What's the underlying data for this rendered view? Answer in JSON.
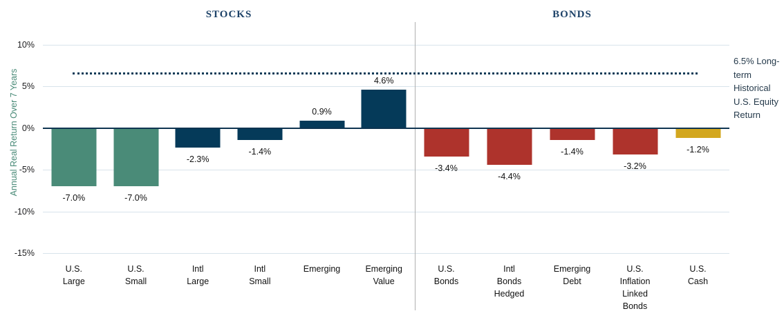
{
  "section_titles": {
    "stocks": "STOCKS",
    "bonds": "BONDS"
  },
  "y_axis_title": "Annual Real Return Over 7 Years",
  "annotation": {
    "text": "6.5% Long-term Historical U.S. Equity Return",
    "lines": [
      "6.5% Long-",
      "term",
      "Historical",
      "U.S. Equity",
      "Return"
    ]
  },
  "colors": {
    "teal": "#4a8b78",
    "navy": "#053a59",
    "red": "#ae332c",
    "gold": "#d3a71f",
    "grid": "#d8e3eb",
    "zero_line": "#0e3450",
    "dotted_line": "#093a57",
    "divider": "#b0b0b0",
    "section_title": "#1d4268",
    "axis_title": "#4a8b78",
    "tick_text": "#1c1c1e",
    "value_text": "#101010",
    "annotation_text": "#253a4b"
  },
  "chart_data": {
    "type": "bar",
    "title": "",
    "xlabel": "",
    "ylabel": "Annual Real Return Over 7 Years",
    "ylim": [
      -15.2,
      11.2
    ],
    "yticks": [
      10,
      5,
      0,
      -5,
      -10,
      -15
    ],
    "ytick_labels": [
      "10%",
      "5%",
      "0%",
      "-5%",
      "-10%",
      "-15%"
    ],
    "grid": "horizontal",
    "legend": "none",
    "reference_line": {
      "value": 6.5,
      "style": "dotted",
      "label": "6.5% Long-term Historical U.S. Equity Return"
    },
    "groups": [
      {
        "name": "STOCKS",
        "bars": [
          {
            "category": "U.S. Large",
            "category_lines": "U.S.\nLarge",
            "value": -7.0,
            "value_label": "-7.0%",
            "color": "teal"
          },
          {
            "category": "U.S. Small",
            "category_lines": "U.S.\nSmall",
            "value": -7.0,
            "value_label": "-7.0%",
            "color": "teal"
          },
          {
            "category": "Intl Large",
            "category_lines": "Intl\nLarge",
            "value": -2.3,
            "value_label": "-2.3%",
            "color": "navy"
          },
          {
            "category": "Intl Small",
            "category_lines": "Intl\nSmall",
            "value": -1.4,
            "value_label": "-1.4%",
            "color": "navy"
          },
          {
            "category": "Emerging",
            "category_lines": "Emerging",
            "value": 0.9,
            "value_label": "0.9%",
            "color": "navy"
          },
          {
            "category": "Emerging Value",
            "category_lines": "Emerging\nValue",
            "value": 4.6,
            "value_label": "4.6%",
            "color": "navy"
          }
        ]
      },
      {
        "name": "BONDS",
        "bars": [
          {
            "category": "U.S. Bonds",
            "category_lines": "U.S.\nBonds",
            "value": -3.4,
            "value_label": "-3.4%",
            "color": "red"
          },
          {
            "category": "Intl Bonds Hedged",
            "category_lines": "Intl\nBonds\nHedged",
            "value": -4.4,
            "value_label": "-4.4%",
            "color": "red"
          },
          {
            "category": "Emerging Debt",
            "category_lines": "Emerging\nDebt",
            "value": -1.4,
            "value_label": "-1.4%",
            "color": "red"
          },
          {
            "category": "U.S. Inflation Linked Bonds",
            "category_lines": "U.S.\nInflation\nLinked\nBonds",
            "value": -3.2,
            "value_label": "-3.2%",
            "color": "red"
          },
          {
            "category": "U.S. Cash",
            "category_lines": "U.S.\nCash",
            "value": -1.2,
            "value_label": "-1.2%",
            "color": "gold"
          }
        ]
      }
    ]
  }
}
